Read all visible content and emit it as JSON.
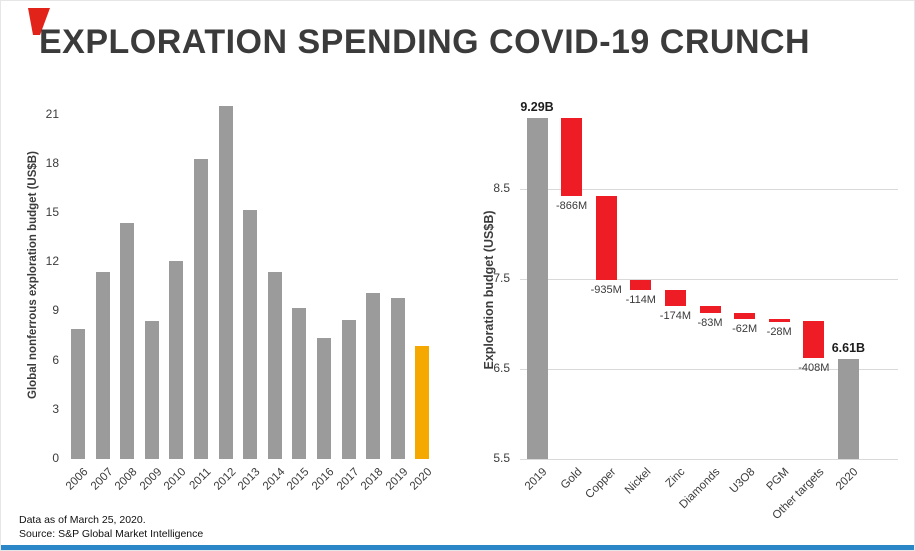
{
  "title": "EXPLORATION SPENDING COVID-19 CRUNCH",
  "footer": {
    "line1": "Data as of March 25, 2020.",
    "line2": "Source: S&P Global Market Intelligence"
  },
  "colors": {
    "bar_gray": "#9b9b9b",
    "highlight_orange": "#f5a800",
    "delta_red": "#ee1c25",
    "accent_red": "#e2231a",
    "bottom_bar_blue": "#2b87c8",
    "grid": "#d9d9d9",
    "text_dark": "#3c3c3c"
  },
  "chart_data": [
    {
      "type": "bar",
      "title": "Global nonferrous exploration budget 2006-2020",
      "ylabel": "Global nonferrous exploration budget (US$B)",
      "xlabel": "",
      "categories": [
        "2006",
        "2007",
        "2008",
        "2009",
        "2010",
        "2011",
        "2012",
        "2013",
        "2014",
        "2015",
        "2016",
        "2017",
        "2018",
        "2019",
        "2020"
      ],
      "values": [
        7.9,
        11.4,
        14.4,
        8.4,
        12.1,
        18.3,
        21.5,
        15.2,
        11.4,
        9.2,
        7.4,
        8.5,
        10.1,
        9.8,
        6.9
      ],
      "yticks": [
        "0",
        "3",
        "6",
        "9",
        "12",
        "15",
        "18",
        "21"
      ],
      "ylim": [
        0,
        22
      ],
      "grid": false,
      "legend": "none",
      "highlight_index": 14
    },
    {
      "type": "waterfall",
      "title": "Exploration budget change 2019 to 2020 by commodity",
      "ylabel": "Exploration budget (US$B)",
      "xlabel": "",
      "categories": [
        "2019",
        "Gold",
        "Copper",
        "Nickel",
        "Zinc",
        "Diamonds",
        "U3O8",
        "PGM",
        "Other targets",
        "2020"
      ],
      "start": {
        "category": "2019",
        "value": 9.29,
        "label": "9.29B"
      },
      "deltas": [
        {
          "category": "Gold",
          "value": -0.866,
          "label": "-866M"
        },
        {
          "category": "Copper",
          "value": -0.935,
          "label": "-935M"
        },
        {
          "category": "Nickel",
          "value": -0.114,
          "label": "-114M"
        },
        {
          "category": "Zinc",
          "value": -0.174,
          "label": "-174M"
        },
        {
          "category": "Diamonds",
          "value": -0.083,
          "label": "-83M"
        },
        {
          "category": "U3O8",
          "value": -0.062,
          "label": "-62M"
        },
        {
          "category": "PGM",
          "value": -0.028,
          "label": "-28M"
        },
        {
          "category": "Other targets",
          "value": -0.408,
          "label": "-408M"
        }
      ],
      "end": {
        "category": "2020",
        "value": 6.61,
        "label": "6.61B"
      },
      "yticks": [
        "5.5",
        "6.5",
        "7.5",
        "8.5"
      ],
      "ylim": [
        5.5,
        9.5
      ],
      "grid": true,
      "legend": "none"
    }
  ]
}
